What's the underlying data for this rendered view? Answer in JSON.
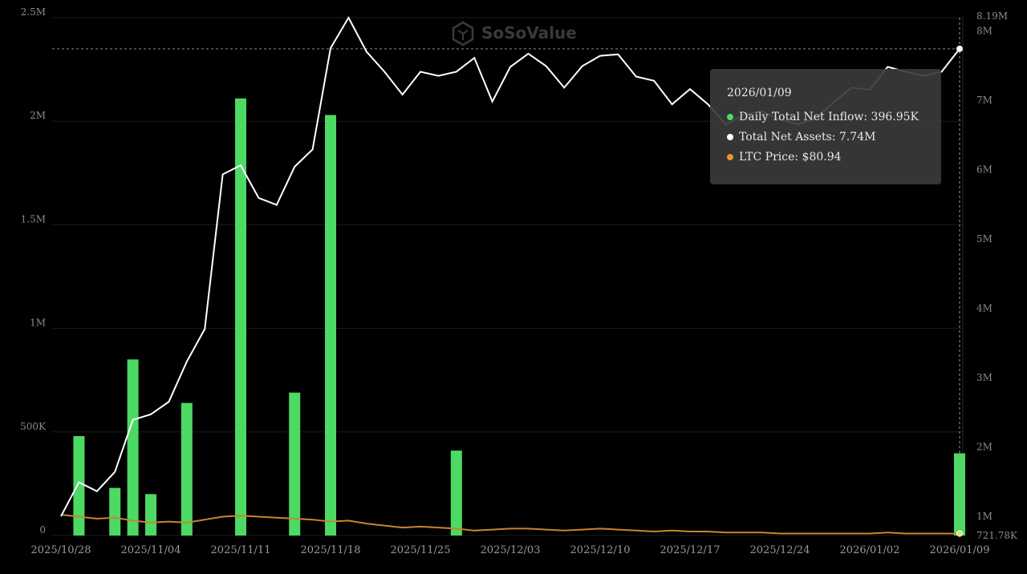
{
  "watermark": "SoSoValue",
  "tooltip": {
    "date": "2026/01/09",
    "rows": [
      {
        "label": "Daily Total Net Inflow: 396.95K",
        "color": "#4cd964"
      },
      {
        "label": "Total Net Assets: 7.74M",
        "color": "#ffffff"
      },
      {
        "label": "LTC Price: $80.94",
        "color": "#e8962a"
      }
    ]
  },
  "chart_data": {
    "type": "bar",
    "x_tick_labels": [
      "2025/10/28",
      "2025/11/04",
      "2025/11/11",
      "2025/11/18",
      "2025/11/25",
      "2025/12/03",
      "2025/12/10",
      "2025/12/17",
      "2025/12/24",
      "2026/01/02",
      "2026/01/09"
    ],
    "y_left": {
      "ticks": [
        "0",
        "500K",
        "1M",
        "1.5M",
        "2M",
        "2.5M"
      ],
      "range": [
        0,
        2500000
      ]
    },
    "y_right": {
      "ticks": [
        "721.78K",
        "1M",
        "2M",
        "3M",
        "4M",
        "5M",
        "6M",
        "7M",
        "8M",
        "8.19M"
      ],
      "range": [
        721780,
        8190000
      ]
    },
    "colors": {
      "inflow": "#4cd964",
      "assets": "#ffffff",
      "price": "#c8862a"
    },
    "dates": [
      "2025/10/28",
      "2025/10/29",
      "2025/10/30",
      "2025/10/31",
      "2025/11/03",
      "2025/11/04",
      "2025/11/05",
      "2025/11/06",
      "2025/11/07",
      "2025/11/10",
      "2025/11/11",
      "2025/11/12",
      "2025/11/13",
      "2025/11/14",
      "2025/11/17",
      "2025/11/18",
      "2025/11/19",
      "2025/11/20",
      "2025/11/21",
      "2025/11/24",
      "2025/11/25",
      "2025/11/26",
      "2025/11/28",
      "2025/12/01",
      "2025/12/02",
      "2025/12/03",
      "2025/12/04",
      "2025/12/05",
      "2025/12/08",
      "2025/12/09",
      "2025/12/10",
      "2025/12/11",
      "2025/12/12",
      "2025/12/15",
      "2025/12/16",
      "2025/12/17",
      "2025/12/18",
      "2025/12/19",
      "2025/12/22",
      "2025/12/23",
      "2025/12/24",
      "2025/12/26",
      "2025/12/29",
      "2025/12/30",
      "2025/12/31",
      "2026/01/02",
      "2026/01/05",
      "2026/01/06",
      "2026/01/07",
      "2026/01/08",
      "2026/01/09"
    ],
    "series": [
      {
        "name": "Daily Total Net Inflow",
        "type": "bar",
        "axis": "left",
        "values": [
          0,
          480000,
          0,
          230000,
          850000,
          200000,
          0,
          640000,
          0,
          0,
          2110000,
          0,
          0,
          690000,
          0,
          2030000,
          0,
          0,
          0,
          0,
          0,
          0,
          410000,
          0,
          0,
          0,
          0,
          0,
          0,
          0,
          0,
          0,
          0,
          0,
          0,
          0,
          0,
          0,
          0,
          0,
          0,
          0,
          0,
          0,
          0,
          0,
          0,
          0,
          0,
          0,
          396950
        ]
      },
      {
        "name": "Total Net Assets",
        "type": "line",
        "axis": "right",
        "values": [
          1000000,
          1490000,
          1360000,
          1640000,
          2390000,
          2470000,
          2650000,
          3230000,
          3700000,
          5930000,
          6060000,
          5590000,
          5490000,
          6040000,
          6290000,
          7750000,
          8190000,
          7700000,
          7410000,
          7080000,
          7410000,
          7350000,
          7410000,
          7610000,
          6980000,
          7480000,
          7670000,
          7490000,
          7180000,
          7490000,
          7640000,
          7660000,
          7340000,
          7280000,
          6940000,
          7160000,
          6940000,
          6650000,
          6790000,
          6840000,
          6720000,
          6650000,
          6740000,
          6970000,
          7180000,
          7150000,
          7480000,
          7410000,
          7350000,
          7410000,
          7740000
        ]
      },
      {
        "name": "LTC Price",
        "type": "line",
        "axis": "price",
        "values": [
          100,
          98,
          96,
          97,
          94,
          92,
          93,
          92,
          95,
          98,
          99,
          98,
          97,
          96,
          95,
          93,
          94,
          91,
          89,
          87,
          88,
          87,
          86,
          84,
          85,
          86,
          86,
          85,
          84,
          85,
          86,
          85,
          84,
          83,
          84,
          83,
          83,
          82,
          82,
          82,
          81,
          81,
          81,
          81,
          81,
          81,
          82,
          81,
          81,
          81,
          80.94
        ]
      }
    ]
  }
}
